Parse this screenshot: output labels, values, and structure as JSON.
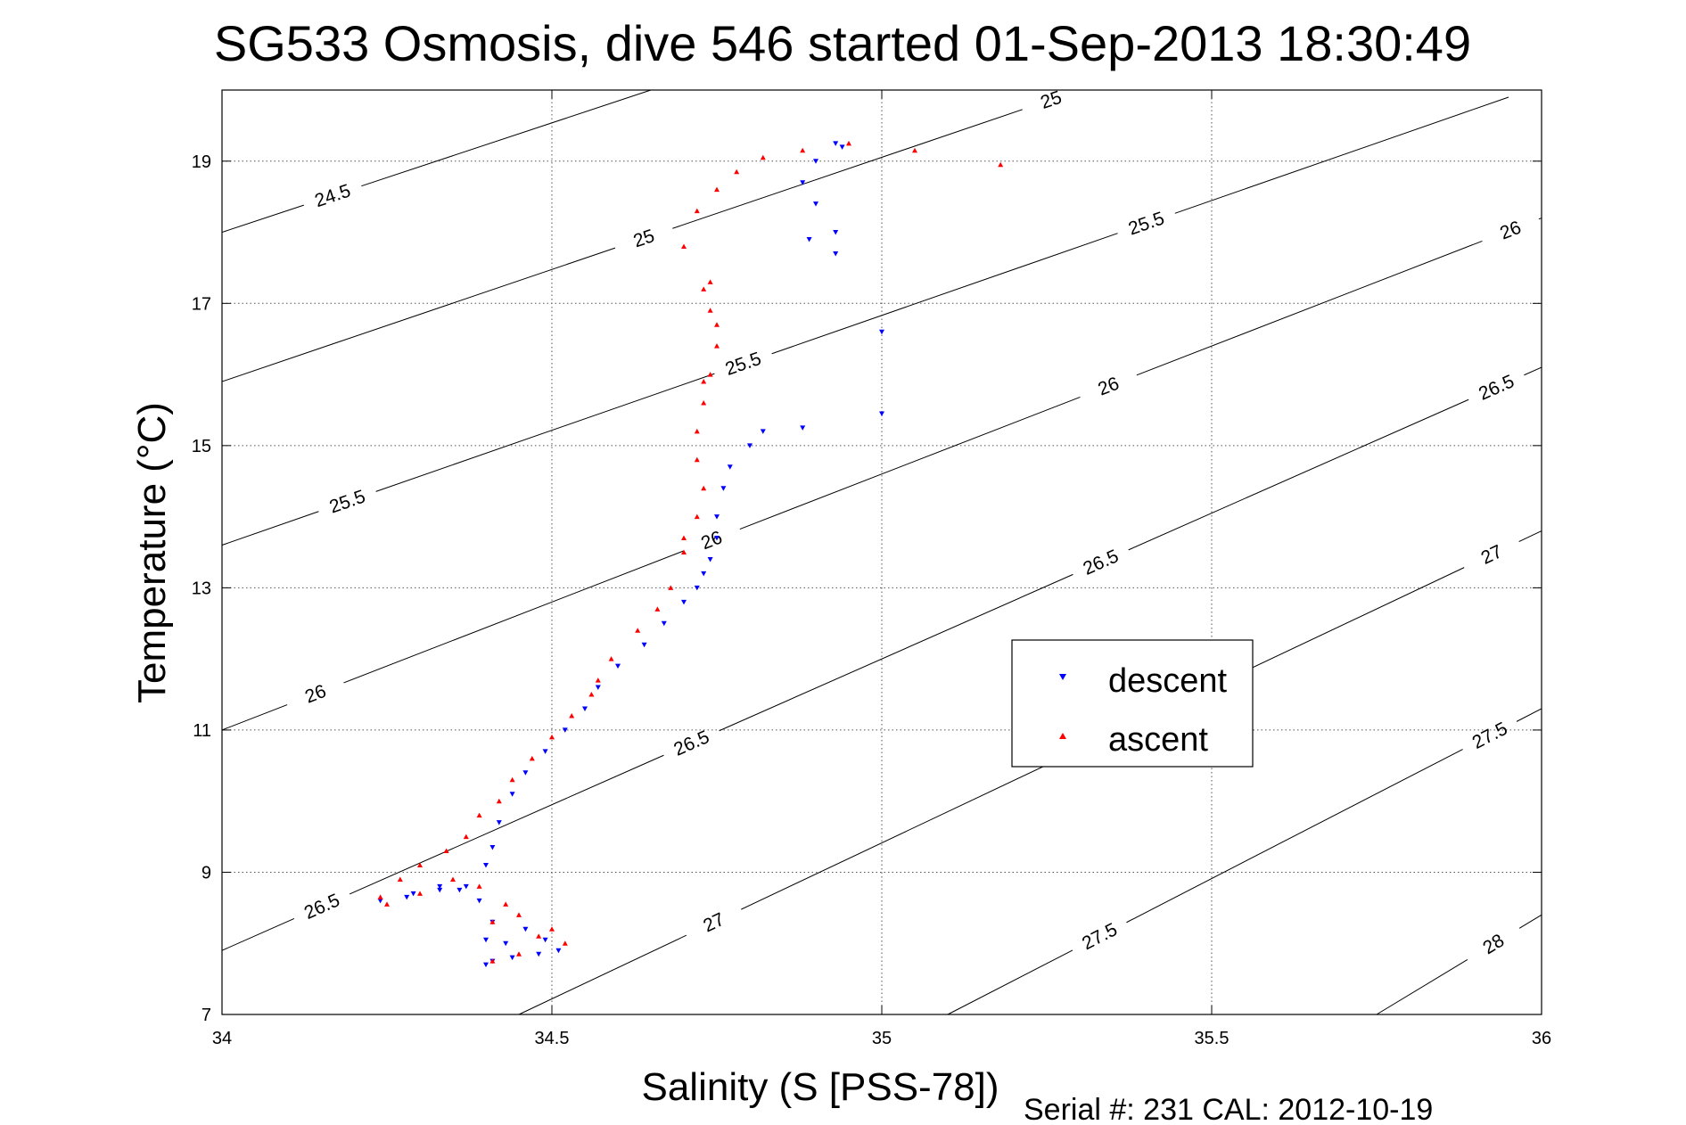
{
  "chart_data": {
    "type": "scatter",
    "title": "SG533 Osmosis, dive 546 started 01-Sep-2013 18:30:49",
    "xlabel": "Salinity (S [PSS-78])",
    "ylabel": "Temperature (°C)",
    "xlim": [
      34,
      36
    ],
    "ylim": [
      7,
      20
    ],
    "xticks": [
      34,
      34.5,
      35,
      35.5,
      36
    ],
    "yticks": [
      7,
      9,
      11,
      13,
      15,
      17,
      19
    ],
    "xtick_labels": [
      "34",
      "34.5",
      "35",
      "35.5",
      "36"
    ],
    "ytick_labels": [
      "7",
      "9",
      "11",
      "13",
      "15",
      "17",
      "19"
    ],
    "grid": true,
    "legend_position": "center-right",
    "footer": "Serial #: 231  CAL: 2012-10-19",
    "density_contours": [
      {
        "label": "24.5",
        "start": [
          34.0,
          18.0
        ],
        "end": [
          34.65,
          20.0
        ],
        "label_positions": [
          [
            34.17,
            18.45
          ]
        ]
      },
      {
        "label": "25",
        "start": [
          34.0,
          15.9
        ],
        "end": [
          35.3,
          20.0
        ],
        "label_positions": [
          [
            34.64,
            17.9
          ],
          [
            35.26,
            19.77
          ]
        ]
      },
      {
        "label": "25.5",
        "start": [
          34.0,
          13.6
        ],
        "end": [
          35.95,
          19.9
        ],
        "label_positions": [
          [
            34.19,
            14.21
          ],
          [
            34.79,
            16.15
          ],
          [
            35.4,
            18.15
          ]
        ]
      },
      {
        "label": "26",
        "start": [
          34.0,
          11.0
        ],
        "end": [
          36.0,
          18.2
        ],
        "label_positions": [
          [
            34.14,
            11.55
          ],
          [
            34.74,
            13.72
          ],
          [
            35.34,
            15.92
          ],
          [
            35.95,
            18.1
          ]
        ]
      },
      {
        "label": "26.5",
        "start": [
          34.0,
          7.9
        ],
        "end": [
          36.0,
          16.1
        ],
        "label_positions": [
          [
            34.15,
            8.55
          ],
          [
            34.71,
            10.85
          ],
          [
            35.33,
            13.4
          ],
          [
            35.93,
            15.85
          ]
        ]
      },
      {
        "label": "27",
        "start": [
          34.45,
          7.0
        ],
        "end": [
          36.0,
          13.8
        ],
        "label_positions": [
          [
            34.74,
            8.4
          ],
          [
            35.92,
            13.55
          ]
        ]
      },
      {
        "label": "27.5",
        "start": [
          35.1,
          7.0
        ],
        "end": [
          36.0,
          11.3
        ],
        "label_positions": [
          [
            35.33,
            8.1
          ],
          [
            35.92,
            10.95
          ]
        ]
      },
      {
        "label": "28",
        "start": [
          35.75,
          7.0
        ],
        "end": [
          36.0,
          8.4
        ],
        "label_positions": [
          [
            35.92,
            8.1
          ]
        ]
      }
    ],
    "series": [
      {
        "name": "descent",
        "color": "#0000ff",
        "marker": "triangle-down",
        "x": [
          34.93,
          34.94,
          34.9,
          34.88,
          34.9,
          34.93,
          34.89,
          34.93,
          34.88,
          34.82,
          34.8,
          34.77,
          34.76,
          34.75,
          34.75,
          34.74,
          34.73,
          34.72,
          34.7,
          34.67,
          34.64,
          34.6,
          34.57,
          34.55,
          34.52,
          34.49,
          34.46,
          34.44,
          34.42,
          34.41,
          34.4,
          34.37,
          34.33,
          34.29,
          34.24,
          34.28,
          34.33,
          34.36,
          34.39,
          34.41,
          34.4,
          34.43,
          34.46,
          34.49,
          34.51,
          34.48,
          34.44,
          34.41,
          34.4,
          35.0,
          35.0
        ],
        "y": [
          19.25,
          19.2,
          19.0,
          18.7,
          18.4,
          18.0,
          17.9,
          17.7,
          15.25,
          15.2,
          15.0,
          14.7,
          14.4,
          14.0,
          13.7,
          13.4,
          13.2,
          13.0,
          12.8,
          12.5,
          12.2,
          11.9,
          11.6,
          11.3,
          11.0,
          10.7,
          10.4,
          10.1,
          9.7,
          9.35,
          9.1,
          8.8,
          8.75,
          8.7,
          8.6,
          8.65,
          8.8,
          8.75,
          8.6,
          8.3,
          8.05,
          8.0,
          8.2,
          8.05,
          7.9,
          7.85,
          7.8,
          7.75,
          7.7,
          16.6,
          15.45
        ]
      },
      {
        "name": "ascent",
        "color": "#ff0000",
        "marker": "triangle-up",
        "x": [
          35.18,
          35.05,
          34.95,
          34.88,
          34.82,
          34.78,
          34.75,
          34.72,
          34.74,
          34.74,
          34.75,
          34.74,
          34.73,
          34.72,
          34.72,
          34.73,
          34.72,
          34.7,
          34.7,
          34.68,
          34.66,
          34.63,
          34.59,
          34.57,
          34.56,
          34.53,
          34.5,
          34.47,
          34.44,
          34.42,
          34.39,
          34.37,
          34.34,
          34.3,
          34.27,
          34.24,
          34.25,
          34.3,
          34.35,
          34.39,
          34.43,
          34.41,
          34.45,
          34.48,
          34.5,
          34.52,
          34.45,
          34.41,
          34.7,
          34.73,
          34.75,
          34.73
        ],
        "y": [
          18.95,
          19.15,
          19.25,
          19.15,
          19.05,
          18.85,
          18.6,
          18.3,
          17.3,
          16.9,
          16.4,
          16.0,
          15.6,
          15.2,
          14.8,
          14.4,
          14.0,
          13.7,
          13.5,
          13.0,
          12.7,
          12.4,
          12.0,
          11.7,
          11.5,
          11.2,
          10.9,
          10.6,
          10.3,
          10.0,
          9.8,
          9.5,
          9.3,
          9.1,
          8.9,
          8.65,
          8.55,
          8.7,
          8.9,
          8.8,
          8.55,
          8.3,
          8.4,
          8.1,
          8.2,
          8.0,
          7.85,
          7.75,
          17.8,
          17.2,
          16.7,
          15.9
        ]
      }
    ]
  }
}
